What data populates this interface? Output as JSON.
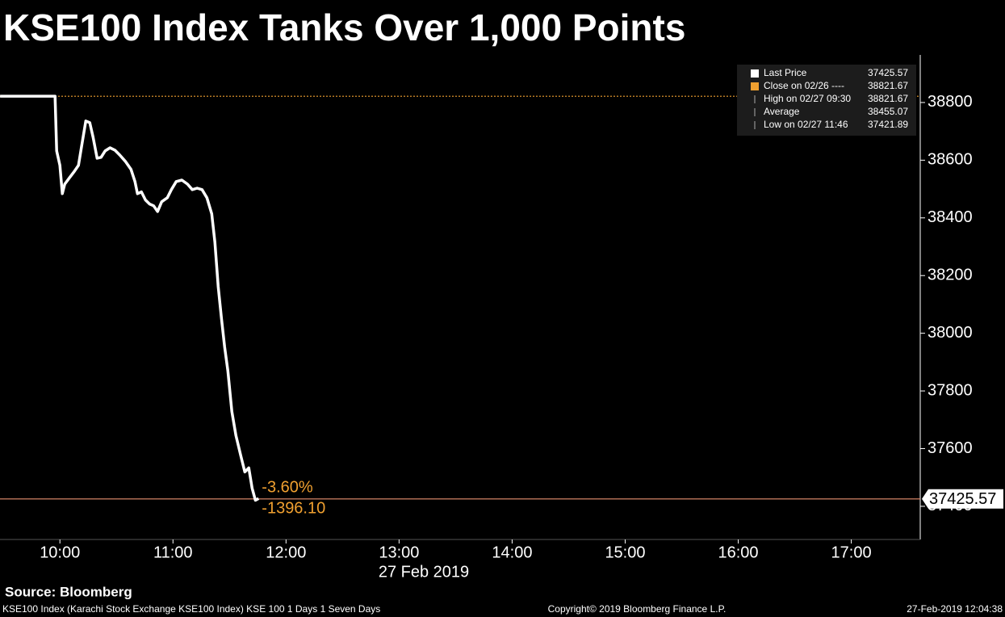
{
  "chart_data": {
    "type": "line",
    "title": "KSE100 Index Tanks Over 1,000 Points",
    "x_label": "27 Feb 2019",
    "x": [
      9.471,
      9.957,
      9.971,
      10,
      10.021,
      10.043,
      10.086,
      10.129,
      10.164,
      10.193,
      10.229,
      10.264,
      10.293,
      10.329,
      10.364,
      10.4,
      10.443,
      10.486,
      10.529,
      10.579,
      10.629,
      10.664,
      10.686,
      10.721,
      10.757,
      10.793,
      10.829,
      10.864,
      10.9,
      10.95,
      10.986,
      11.029,
      11.079,
      11.129,
      11.171,
      11.214,
      11.257,
      11.3,
      11.343,
      11.371,
      11.4,
      11.429,
      11.457,
      11.486,
      11.521,
      11.557,
      11.6,
      11.636,
      11.671,
      11.7,
      11.729,
      11.757
    ],
    "series": [
      {
        "name": "Last Price",
        "color": "#ffffff",
        "values": [
          38822,
          38822,
          38632,
          38582,
          38484,
          38517,
          38540,
          38562,
          38582,
          38652,
          38736,
          38730,
          38680,
          38607,
          38610,
          38632,
          38643,
          38635,
          38618,
          38596,
          38568,
          38526,
          38484,
          38490,
          38462,
          38448,
          38442,
          38422,
          38456,
          38470,
          38498,
          38526,
          38531,
          38517,
          38498,
          38503,
          38498,
          38470,
          38414,
          38316,
          38162,
          38050,
          37952,
          37869,
          37729,
          37645,
          37575,
          37519,
          37533,
          37463,
          37421,
          37427
        ]
      }
    ],
    "xlim": [
      9.47,
      17.61
    ],
    "ylim": [
      37285,
      38965
    ],
    "xticks": [
      {
        "value": 10,
        "label": "10:00"
      },
      {
        "value": 11,
        "label": "11:00"
      },
      {
        "value": 12,
        "label": "12:00"
      },
      {
        "value": 13,
        "label": "13:00"
      },
      {
        "value": 14,
        "label": "14:00"
      },
      {
        "value": 15,
        "label": "15:00"
      },
      {
        "value": 16,
        "label": "16:00"
      },
      {
        "value": 17,
        "label": "17:00"
      }
    ],
    "yticks": [
      37400,
      37600,
      37800,
      38000,
      38200,
      38400,
      38600,
      38800
    ],
    "reference_lines": [
      {
        "value": 38821.67,
        "color": "#f0a030"
      },
      {
        "value": 37425.57,
        "color": "#e89070"
      }
    ],
    "annotations": [
      "-3.60%",
      "-1396.10"
    ],
    "annotation_color": "#f0a030",
    "legend": [
      {
        "label": "Last Price",
        "value": 37425.57,
        "color": "#ffffff"
      },
      {
        "label": "Close on 02/26 ----",
        "value": 38821.67,
        "color": "#f0a030"
      },
      {
        "label": "High on 02/27 09:30",
        "value": 38821.67,
        "color": "#aaaaaa"
      },
      {
        "label": "Average",
        "value": 38455.07,
        "color": "#aaaaaa"
      },
      {
        "label": "Low on 02/27 11:46",
        "value": 37421.89,
        "color": "#aaaaaa"
      }
    ]
  },
  "source": "Source: Bloomberg",
  "footer": {
    "left": "KSE100 Index (Karachi Stock Exchange KSE100 Index) KSE 100 1 Days 1 Seven Days",
    "center": "Copyright© 2019 Bloomberg Finance L.P.",
    "right": "27-Feb-2019 12:04:38"
  }
}
